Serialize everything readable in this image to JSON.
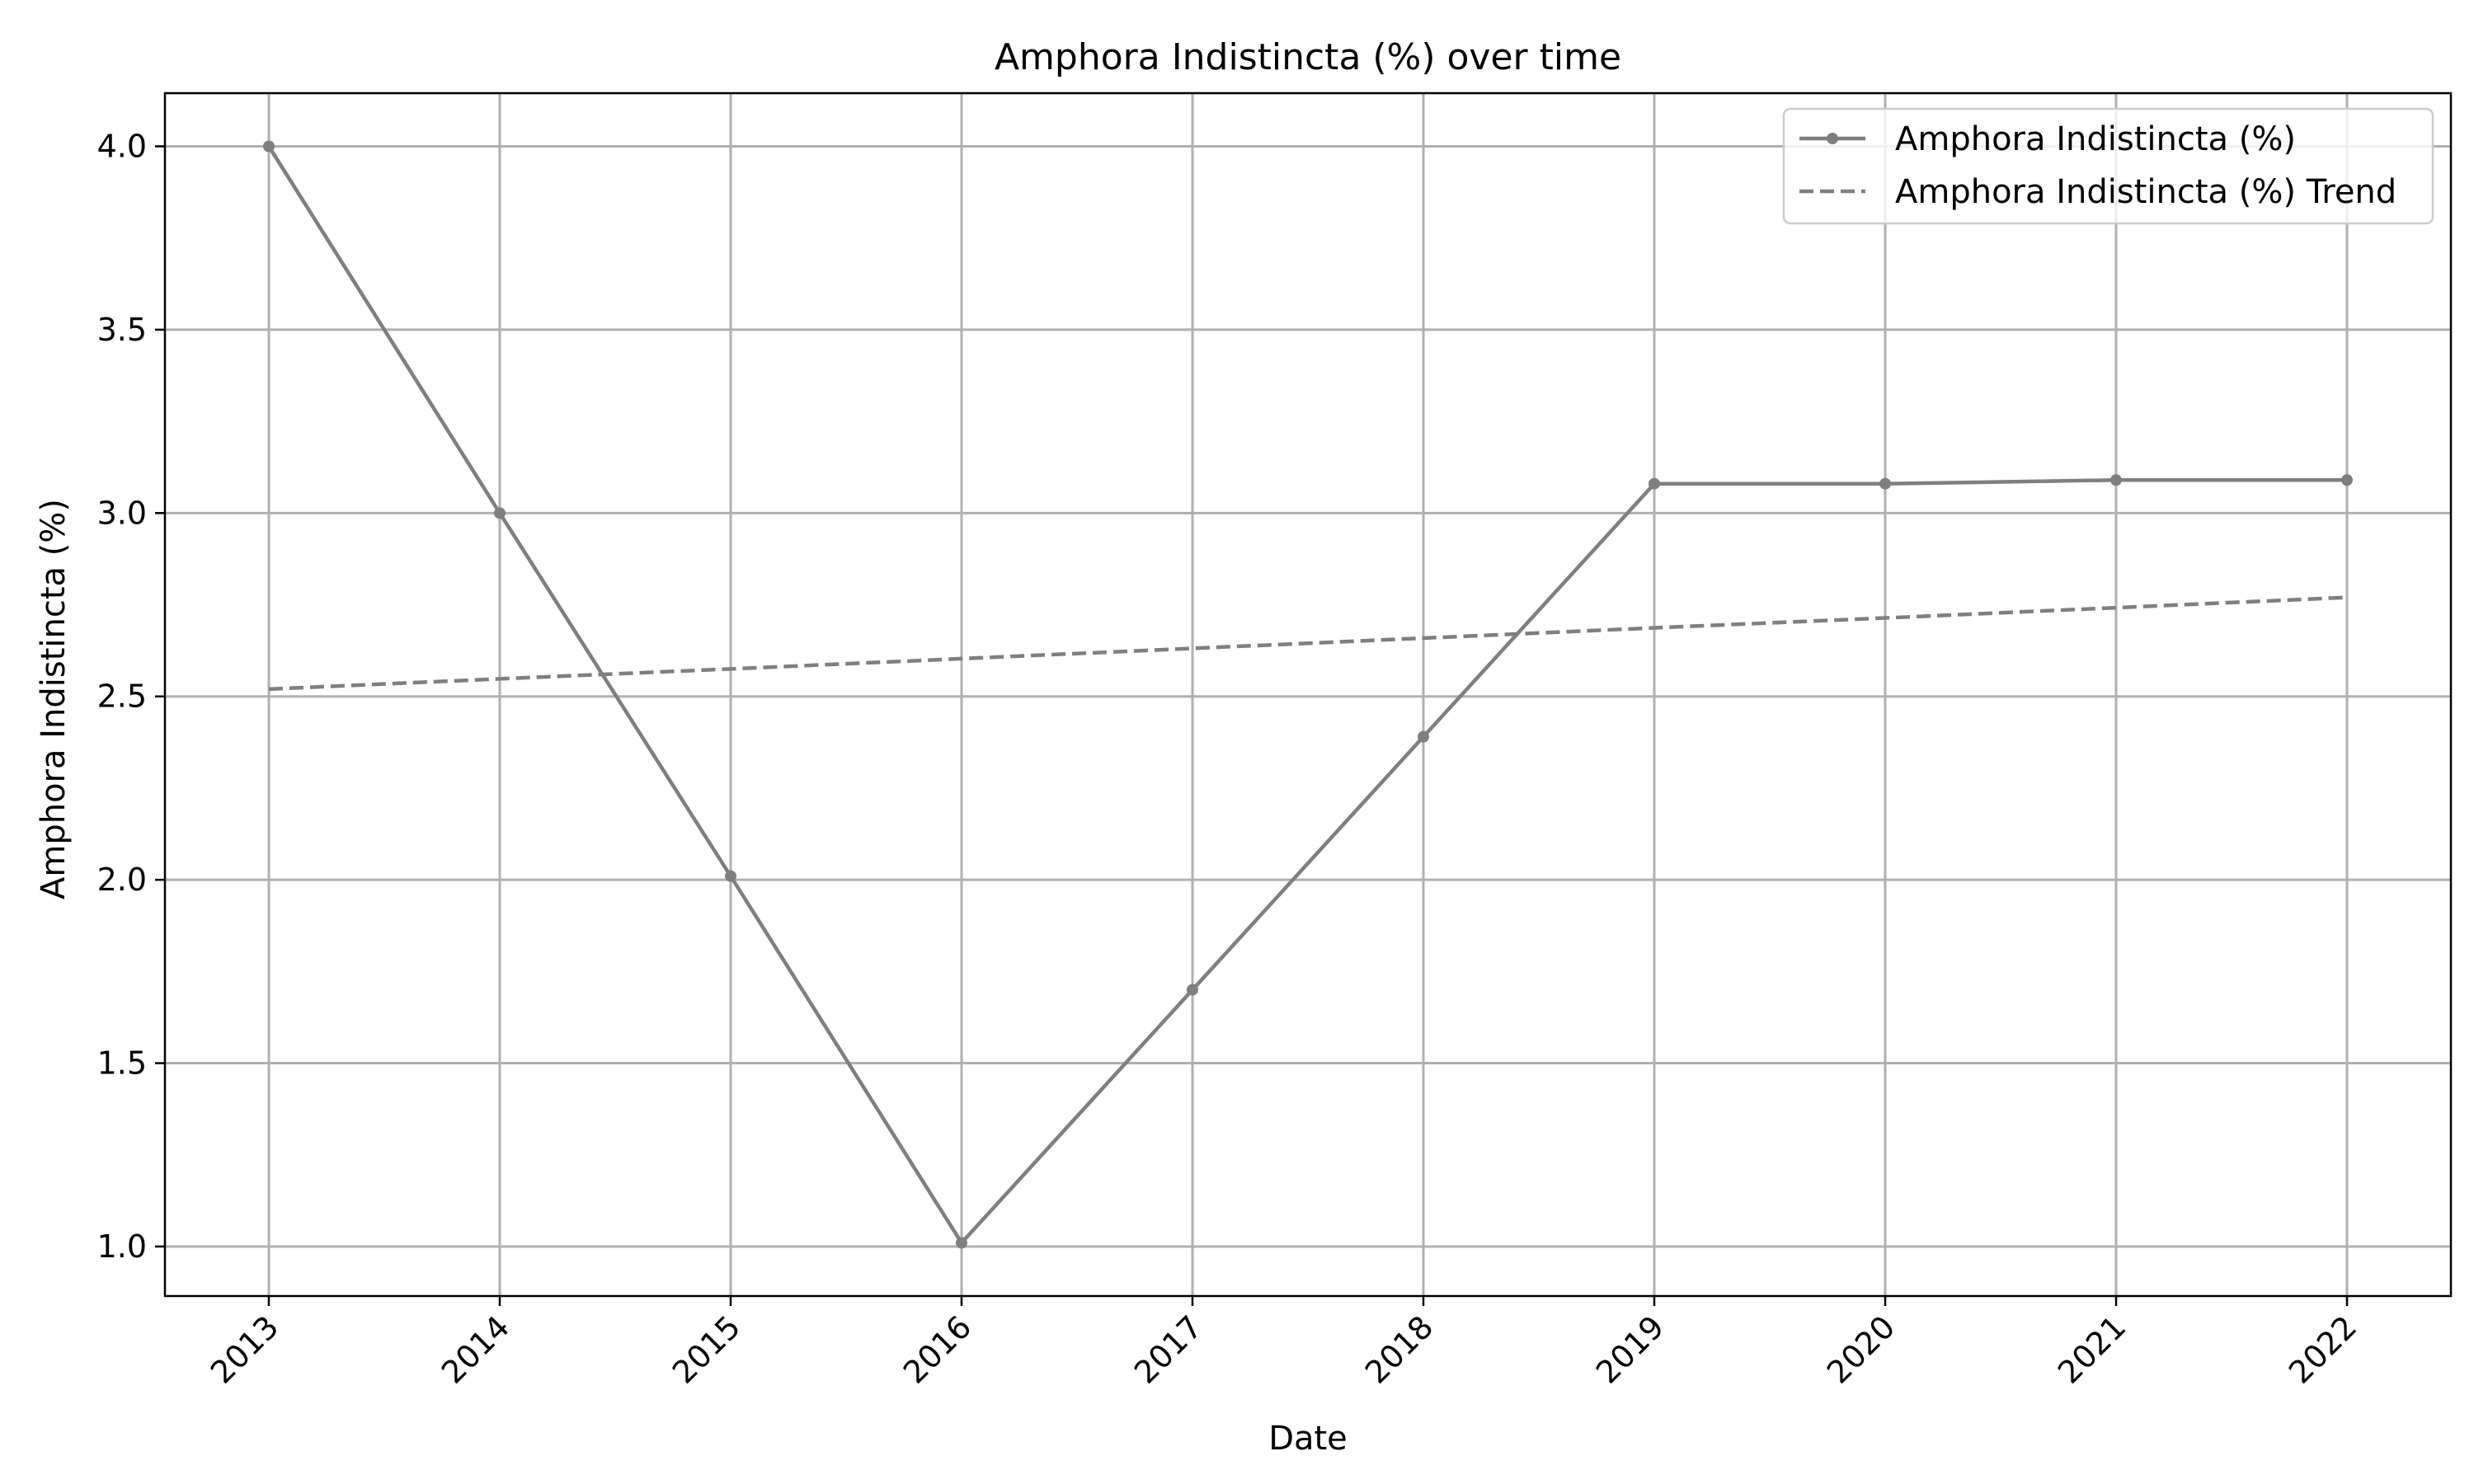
{
  "chart_data": {
    "type": "line",
    "title": "Amphora Indistincta (%) over time",
    "xlabel": "Date",
    "ylabel": "Amphora Indistincta (%)",
    "x": [
      "2013",
      "2014",
      "2015",
      "2016",
      "2017",
      "2018",
      "2019",
      "2020",
      "2021",
      "2022"
    ],
    "series": [
      {
        "name": "Amphora Indistincta (%)",
        "style": "solid-with-markers",
        "color": "#7f7f7f",
        "values": [
          4.0,
          3.0,
          2.01,
          1.01,
          1.7,
          2.39,
          3.08,
          3.08,
          3.09,
          3.09
        ]
      },
      {
        "name": "Amphora Indistincta (%) Trend",
        "style": "dashed",
        "color": "#7f7f7f",
        "values": [
          2.52,
          2.548,
          2.575,
          2.603,
          2.631,
          2.659,
          2.687,
          2.714,
          2.742,
          2.77
        ]
      }
    ],
    "yticks": [
      "1.0",
      "1.5",
      "2.0",
      "2.5",
      "3.0",
      "3.5",
      "4.0"
    ],
    "ylim": [
      0.865,
      4.145
    ],
    "grid": true,
    "legend_position": "top-right"
  }
}
